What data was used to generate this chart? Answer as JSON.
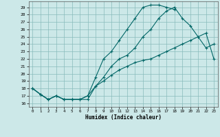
{
  "xlabel": "Humidex (Indice chaleur)",
  "bg_color": "#cce8e8",
  "grid_color": "#88bbbb",
  "line_color": "#006666",
  "xlim": [
    -0.5,
    23.5
  ],
  "ylim": [
    15.5,
    29.8
  ],
  "yticks": [
    16,
    17,
    18,
    19,
    20,
    21,
    22,
    23,
    24,
    25,
    26,
    27,
    28,
    29
  ],
  "xticks": [
    0,
    1,
    2,
    3,
    4,
    5,
    6,
    7,
    8,
    9,
    10,
    11,
    12,
    13,
    14,
    15,
    16,
    17,
    18,
    19,
    20,
    21,
    22,
    23
  ],
  "line1_x": [
    0,
    1,
    2,
    3,
    4,
    5,
    6,
    7,
    8,
    9,
    10,
    11,
    12,
    13,
    14,
    15,
    16,
    17,
    18
  ],
  "line1_y": [
    18.0,
    17.2,
    16.5,
    17.0,
    16.5,
    16.5,
    16.5,
    17.0,
    19.5,
    22.0,
    23.0,
    24.5,
    26.0,
    27.5,
    29.0,
    29.3,
    29.3,
    29.0,
    28.7
  ],
  "line2_x": [
    0,
    1,
    2,
    3,
    4,
    5,
    6,
    7,
    8,
    9,
    10,
    11,
    12,
    13,
    14,
    15,
    16,
    17,
    18,
    19,
    20,
    21,
    22,
    23
  ],
  "line2_y": [
    18.0,
    17.2,
    16.5,
    17.0,
    16.5,
    16.5,
    16.5,
    17.0,
    18.3,
    19.5,
    21.0,
    22.0,
    22.5,
    23.5,
    25.0,
    26.0,
    27.5,
    28.5,
    29.0,
    27.5,
    26.5,
    25.0,
    23.5,
    24.0
  ],
  "line3_x": [
    0,
    1,
    2,
    3,
    4,
    5,
    6,
    7,
    8,
    9,
    10,
    11,
    12,
    13,
    14,
    15,
    16,
    17,
    18,
    19,
    20,
    21,
    22,
    23
  ],
  "line3_y": [
    18.0,
    17.2,
    16.5,
    17.0,
    16.5,
    16.5,
    16.5,
    16.5,
    18.3,
    19.0,
    19.8,
    20.5,
    21.0,
    21.5,
    21.8,
    22.0,
    22.5,
    23.0,
    23.5,
    24.0,
    24.5,
    25.0,
    25.5,
    22.0
  ]
}
